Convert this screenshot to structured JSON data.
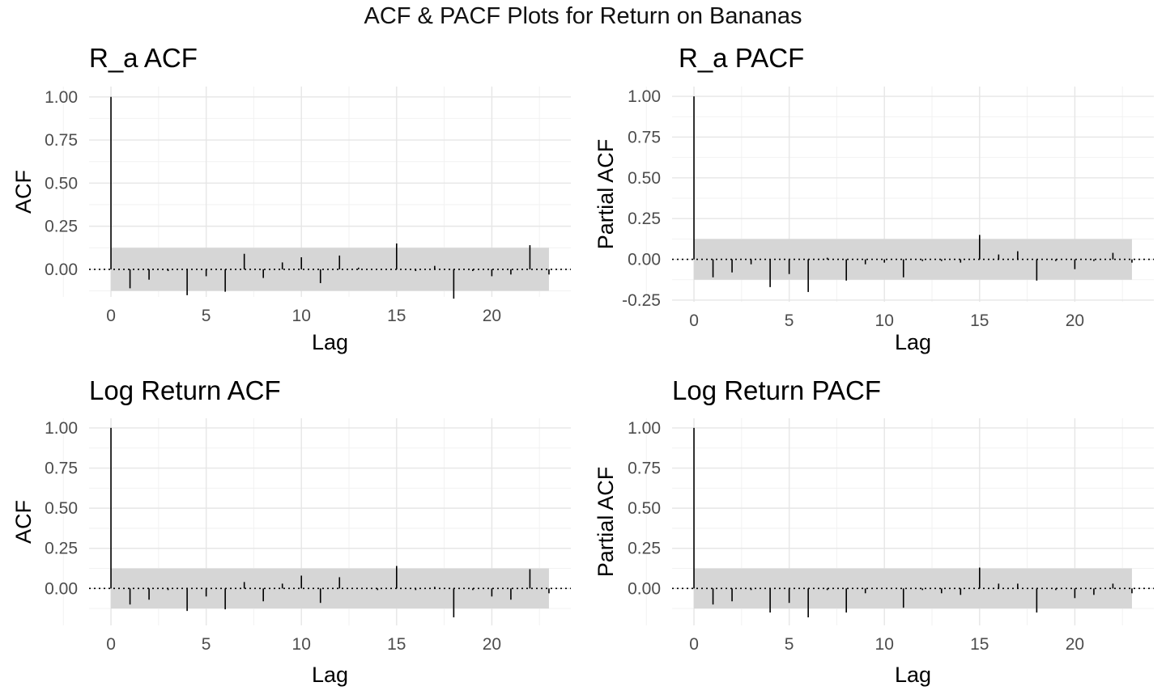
{
  "title": "ACF & PACF Plots for Return on Bananas",
  "chart_data": [
    {
      "type": "bar",
      "title": "R_a ACF",
      "xlabel": "Lag",
      "ylabel": "ACF",
      "x_ticks": [
        "0",
        "5",
        "10",
        "15",
        "20"
      ],
      "y_ticks": [
        "1.00",
        "0.75",
        "0.50",
        "0.25",
        "0.00"
      ],
      "ylim": [
        -0.16,
        1.06
      ],
      "conf_band": [
        -0.125,
        0.125
      ],
      "lags": [
        0,
        1,
        2,
        3,
        4,
        5,
        6,
        7,
        8,
        9,
        10,
        11,
        12,
        13,
        14,
        15,
        16,
        17,
        18,
        19,
        20,
        21,
        22,
        23
      ],
      "values": [
        1.0,
        -0.11,
        -0.06,
        -0.01,
        -0.15,
        -0.04,
        -0.13,
        0.09,
        -0.05,
        0.04,
        0.07,
        -0.08,
        0.08,
        0.01,
        0.0,
        0.15,
        -0.01,
        0.02,
        -0.17,
        -0.01,
        -0.04,
        -0.03,
        0.14,
        -0.03
      ]
    },
    {
      "type": "bar",
      "title": "R_a PACF",
      "xlabel": "Lag",
      "ylabel": "Partial ACF",
      "x_ticks": [
        "0",
        "5",
        "10",
        "15",
        "20"
      ],
      "y_ticks": [
        "1.00",
        "0.75",
        "0.50",
        "0.25",
        "0.00",
        "-0.25"
      ],
      "ylim": [
        -0.26,
        1.06
      ],
      "conf_band": [
        -0.125,
        0.125
      ],
      "lags": [
        0,
        1,
        2,
        3,
        4,
        5,
        6,
        7,
        8,
        9,
        10,
        11,
        12,
        13,
        14,
        15,
        16,
        17,
        18,
        19,
        20,
        21,
        22,
        23
      ],
      "values": [
        1.0,
        -0.11,
        -0.08,
        -0.03,
        -0.17,
        -0.09,
        -0.2,
        0.01,
        -0.13,
        -0.03,
        -0.02,
        -0.11,
        -0.01,
        -0.01,
        -0.02,
        0.15,
        0.03,
        0.05,
        -0.13,
        -0.01,
        -0.06,
        -0.01,
        0.04,
        -0.02
      ]
    },
    {
      "type": "bar",
      "title": "Log Return ACF",
      "xlabel": "Lag",
      "ylabel": "ACF",
      "x_ticks": [
        "0",
        "5",
        "10",
        "15",
        "20"
      ],
      "y_ticks": [
        "1.00",
        "0.75",
        "0.50",
        "0.25",
        "0.00"
      ],
      "ylim": [
        -0.23,
        1.06
      ],
      "conf_band": [
        -0.125,
        0.125
      ],
      "lags": [
        0,
        1,
        2,
        3,
        4,
        5,
        6,
        7,
        8,
        9,
        10,
        11,
        12,
        13,
        14,
        15,
        16,
        17,
        18,
        19,
        20,
        21,
        22,
        23
      ],
      "values": [
        1.0,
        -0.1,
        -0.07,
        -0.01,
        -0.14,
        -0.05,
        -0.13,
        0.04,
        -0.08,
        0.03,
        0.08,
        -0.09,
        0.07,
        0.0,
        -0.01,
        0.14,
        -0.01,
        0.01,
        -0.18,
        -0.01,
        -0.05,
        -0.07,
        0.12,
        -0.03
      ]
    },
    {
      "type": "bar",
      "title": "Log Return PACF",
      "xlabel": "Lag",
      "ylabel": "Partial ACF",
      "x_ticks": [
        "0",
        "5",
        "10",
        "15",
        "20"
      ],
      "y_ticks": [
        "1.00",
        "0.75",
        "0.50",
        "0.25",
        "0.00"
      ],
      "ylim": [
        -0.23,
        1.06
      ],
      "conf_band": [
        -0.125,
        0.125
      ],
      "lags": [
        0,
        1,
        2,
        3,
        4,
        5,
        6,
        7,
        8,
        9,
        10,
        11,
        12,
        13,
        14,
        15,
        16,
        17,
        18,
        19,
        20,
        21,
        22,
        23
      ],
      "values": [
        1.0,
        -0.1,
        -0.08,
        -0.01,
        -0.15,
        -0.09,
        -0.18,
        -0.01,
        -0.15,
        -0.03,
        0.0,
        -0.12,
        -0.01,
        -0.03,
        -0.04,
        0.13,
        0.03,
        0.03,
        -0.15,
        -0.01,
        -0.06,
        -0.04,
        0.03,
        -0.03
      ]
    }
  ]
}
